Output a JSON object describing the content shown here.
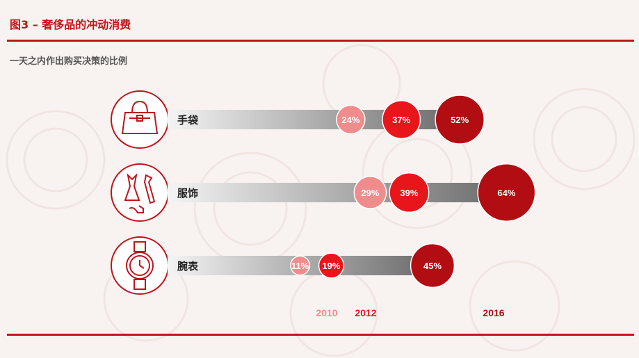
{
  "header": {
    "title": "图3 – 奢侈品的冲动消费"
  },
  "colors": {
    "accent": "#c0151b",
    "series_2010": "#f08c8c",
    "series_2012": "#e8151b",
    "series_2016": "#b10d12"
  },
  "chart_data": {
    "type": "bar",
    "title": "一天之内作出购买决策的比例",
    "categories": [
      "手袋",
      "服饰",
      "腕表"
    ],
    "category_icons": [
      "handbag-icon",
      "clothing-icon",
      "watch-icon"
    ],
    "series": [
      {
        "name": "2010",
        "values": [
          24,
          29,
          11
        ],
        "labels": [
          "24%",
          "29%",
          "11%"
        ]
      },
      {
        "name": "2012",
        "values": [
          37,
          39,
          19
        ],
        "labels": [
          "37%",
          "39%",
          "19%"
        ]
      },
      {
        "name": "2016",
        "values": [
          52,
          64,
          45
        ],
        "labels": [
          "52%",
          "64%",
          "45%"
        ]
      }
    ],
    "legend": {
      "placement": "bottom"
    },
    "grid": false
  }
}
